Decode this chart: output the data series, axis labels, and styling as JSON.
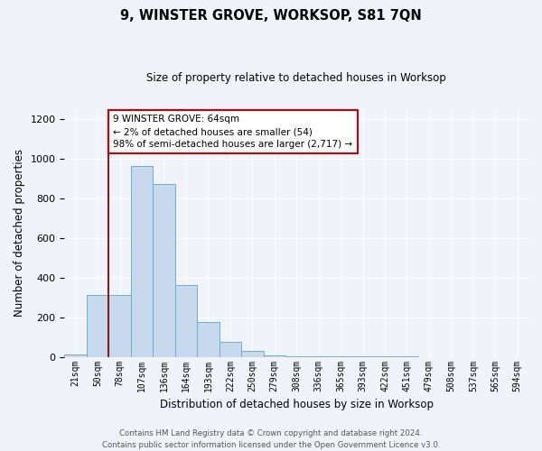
{
  "title": "9, WINSTER GROVE, WORKSOP, S81 7QN",
  "subtitle": "Size of property relative to detached houses in Worksop",
  "xlabel": "Distribution of detached houses by size in Worksop",
  "ylabel": "Number of detached properties",
  "bin_labels": [
    "21sqm",
    "50sqm",
    "78sqm",
    "107sqm",
    "136sqm",
    "164sqm",
    "193sqm",
    "222sqm",
    "250sqm",
    "279sqm",
    "308sqm",
    "336sqm",
    "365sqm",
    "393sqm",
    "422sqm",
    "451sqm",
    "479sqm",
    "508sqm",
    "537sqm",
    "565sqm",
    "594sqm"
  ],
  "bar_heights": [
    10,
    310,
    310,
    960,
    870,
    360,
    175,
    75,
    30,
    8,
    3,
    2,
    1,
    1,
    1,
    1,
    0,
    0,
    0,
    0,
    0
  ],
  "bar_color": "#c8d9ee",
  "bar_edge_color": "#6baed6",
  "vline_color": "#8b1a1a",
  "annotation_text": "9 WINSTER GROVE: 64sqm\n← 2% of detached houses are smaller (54)\n98% of semi-detached houses are larger (2,717) →",
  "annotation_box_color": "#ffffff",
  "annotation_box_edge": "#cc0000",
  "ylim": [
    0,
    1250
  ],
  "yticks": [
    0,
    200,
    400,
    600,
    800,
    1000,
    1200
  ],
  "footer": "Contains HM Land Registry data © Crown copyright and database right 2024.\nContains public sector information licensed under the Open Government Licence v3.0.",
  "background_color": "#f0f4fa"
}
